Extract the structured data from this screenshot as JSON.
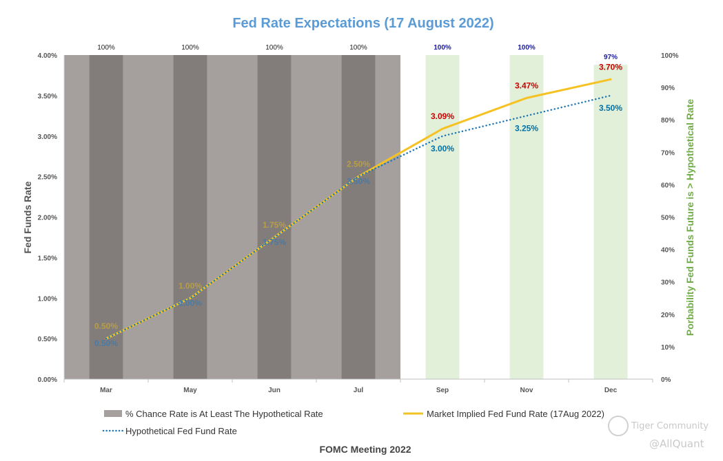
{
  "chart_data": {
    "type": "bar+line",
    "title": "Fed Rate Expectations (17 August 2022)",
    "xlabel": "FOMC Meeting 2022",
    "ylabel_left": "Fed Funds Rate",
    "ylabel_right": "Porbability Fed Funds Future is > Hypothetical Rate",
    "categories": [
      "Mar",
      "May",
      "Jun",
      "Jul",
      "Sep",
      "Nov",
      "Dec"
    ],
    "ylim_left": [
      0,
      4
    ],
    "ylim_right": [
      0,
      100
    ],
    "yticks_left": [
      "0.00%",
      "0.50%",
      "1.00%",
      "1.50%",
      "2.00%",
      "2.50%",
      "3.00%",
      "3.50%",
      "4.00%"
    ],
    "yticks_right": [
      "0%",
      "10%",
      "20%",
      "30%",
      "40%",
      "50%",
      "60%",
      "70%",
      "80%",
      "90%",
      "100%"
    ],
    "past_region_last_index": 3,
    "series": [
      {
        "name": "% Chance Rate is At Least The Hypothetical Rate",
        "kind": "bar",
        "axis": "right",
        "values": [
          100,
          100,
          100,
          100,
          100,
          100,
          97
        ],
        "labels": [
          "100%",
          "100%",
          "100%",
          "100%",
          "100%",
          "100%",
          "97%"
        ],
        "colors": [
          "#827d7b",
          "#827d7b",
          "#827d7b",
          "#827d7b",
          "#e2f0d9",
          "#e2f0d9",
          "#e2f0d9"
        ]
      },
      {
        "name": "Market Implied Fed Fund  Rate (17Aug 2022)",
        "kind": "line",
        "axis": "left",
        "color": "#f6c223",
        "values": [
          0.5,
          1.0,
          1.75,
          2.5,
          3.09,
          3.47,
          3.7
        ],
        "labels": [
          "0.50%",
          "1.00%",
          "1.75%",
          "2.50%",
          "3.09%",
          "3.47%",
          "3.70%"
        ]
      },
      {
        "name": "Hypothetical Fed Fund Rate",
        "kind": "dotted-line",
        "axis": "left",
        "color": "#1f78b4",
        "values": [
          0.5,
          1.0,
          1.75,
          2.5,
          3.0,
          3.25,
          3.5
        ],
        "labels": [
          "0.50%",
          "1.00%",
          "1.75%",
          "2.50%",
          "3.00%",
          "3.25%",
          "3.50%"
        ]
      }
    ],
    "colors": {
      "title": "#5b9bd5",
      "past_region": "#a5a09e",
      "past_bar": "#827d7b",
      "future_bar": "#e2f0d9",
      "implied_line": "#f6c223",
      "hypothetical_line": "#1f78b4",
      "implied_label_past": "#b89d49",
      "implied_label_future": "#cc0000",
      "hyp_label_past": "#4a79a3",
      "hyp_label_future": "#0070a8",
      "bar_label_past": "#222222",
      "bar_label_future": "#1a1a9a",
      "right_axis_title": "#70ad47",
      "axis_text": "#555555"
    },
    "legend_placement": "bottom"
  },
  "watermark": {
    "brand": "Tiger Community",
    "handle": "@AllQuant"
  }
}
